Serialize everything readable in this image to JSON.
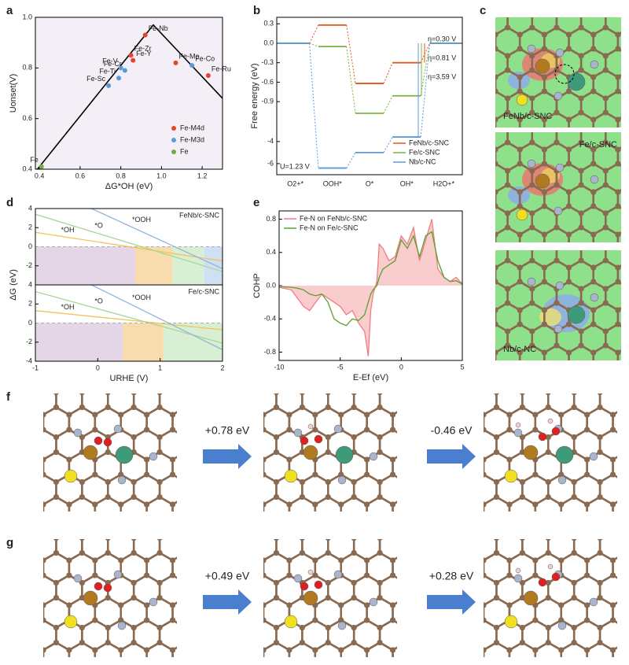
{
  "panels": [
    "a",
    "b",
    "c",
    "d",
    "e",
    "f",
    "g"
  ],
  "chart_data": [
    {
      "type": "scatter",
      "xlabel": "ΔG*OH (eV)",
      "ylabel": "Uonset(V)",
      "xlim": [
        0.38,
        1.3
      ],
      "ylim": [
        0.4,
        1.0
      ],
      "xticks": [
        0.4,
        0.6,
        0.8,
        {
          "value": 1,
          "label": "1.0"
        },
        1.2
      ],
      "yticks": [
        0.4,
        0.6,
        0.8,
        {
          "value": 1,
          "label": "1.0"
        }
      ],
      "lines": [
        {
          "color": "#000000",
          "x": [
            0.38,
            0.96,
            1.3
          ],
          "values": [
            0.39,
            0.97,
            0.68
          ]
        }
      ],
      "legend": "lower right",
      "series": [
        {
          "name": "Fe-M4d",
          "color": "#e8442a",
          "x": [
            0.92,
            0.85,
            0.86,
            1.07,
            1.23
          ],
          "values": [
            0.93,
            0.85,
            0.83,
            0.82,
            0.77
          ],
          "labels": [
            "Fe-Nb",
            "Fe-Zr",
            "Fe-Y",
            "Fe-Mo",
            "Fe-Ru"
          ]
        },
        {
          "name": "Fe-M3d",
          "color": "#5b9bd5",
          "x": [
            0.8,
            0.82,
            0.79,
            0.74,
            1.15
          ],
          "values": [
            0.8,
            0.79,
            0.76,
            0.73,
            0.81
          ],
          "labels": [
            "Fe-V",
            "Fe-Cr",
            "Fe-Ti",
            "Fe-Sc",
            "Fe-Co"
          ]
        },
        {
          "name": "Fe",
          "color": "#6ab04c",
          "x": [
            0.41
          ],
          "values": [
            0.41
          ],
          "labels": [
            "Fe"
          ]
        }
      ]
    },
    {
      "type": "step",
      "ylabel": "Free energy (eV)",
      "categories": [
        "O2+*",
        "OOH*",
        "O*",
        "OH*",
        "H2O+*"
      ],
      "ylim": [
        -7,
        0.4
      ],
      "ybreak": [
        -1.25,
        -3.3
      ],
      "yticks": [
        0.3,
        {
          "value": 0,
          "label": "0.0"
        },
        -0.3,
        -0.6,
        -0.9,
        -4,
        -6
      ],
      "legend": "lower right",
      "note": "U=1.23 V",
      "annotations": [
        "η=0.30 V",
        "η=0.81 V",
        "η=3.59 V"
      ],
      "series": [
        {
          "name": "FeNb/c-SNC",
          "color": "#e8541e",
          "values": [
            0,
            0.28,
            -0.62,
            -0.3,
            0
          ]
        },
        {
          "name": "Fe/c-SNC",
          "color": "#7cb342",
          "values": [
            0,
            -0.05,
            -1.08,
            -0.81,
            0
          ]
        },
        {
          "name": "Nb/c-NC",
          "color": "#5b9bd5",
          "values": [
            0,
            -6.4,
            -5.0,
            -3.59,
            0
          ]
        }
      ]
    },
    {
      "type": "line",
      "ylabel": "ΔG (eV)",
      "label": "FeNb/c-SNC",
      "xlim": [
        -1,
        2
      ],
      "ylim": [
        -4,
        4
      ],
      "yticks": [
        -2,
        0,
        2,
        4
      ],
      "zero_line": true,
      "regions": [
        {
          "x": [
            -1,
            0.6
          ],
          "color": "#e4d6e6"
        },
        {
          "x": [
            0.6,
            1.2
          ],
          "color": "#f8dcae"
        },
        {
          "x": [
            1.2,
            1.7
          ],
          "color": "#d9efd3"
        },
        {
          "x": [
            1.7,
            2
          ],
          "color": "#cfe0f2"
        }
      ],
      "series": [
        {
          "name": "*OH",
          "color": "#f2c45a",
          "x": [
            -1,
            2
          ],
          "values": [
            1.5,
            -1.5
          ]
        },
        {
          "name": "*O",
          "color": "#a8d69a",
          "x": [
            -1,
            2
          ],
          "values": [
            3.4,
            -2.6
          ]
        },
        {
          "name": "*OOH",
          "color": "#94b4dc",
          "x": [
            -0.1,
            2
          ],
          "values": [
            4,
            -2.3
          ]
        }
      ]
    },
    {
      "type": "line",
      "xlabel": "URHE (V)",
      "label": "Fe/c-SNC",
      "xlim": [
        -1,
        2
      ],
      "ylim": [
        -4,
        4
      ],
      "xticks": [
        -1,
        0,
        1,
        2
      ],
      "yticks": [
        -4,
        -2,
        0,
        2,
        4
      ],
      "zero_line": true,
      "regions": [
        {
          "x": [
            -1,
            0.4
          ],
          "color": "#e4d6e6"
        },
        {
          "x": [
            0.4,
            1.05
          ],
          "color": "#f8dcae"
        },
        {
          "x": [
            1.05,
            2
          ],
          "color": "#d9efd3"
        }
      ],
      "series": [
        {
          "name": "*OH",
          "color": "#f2c45a",
          "x": [
            -1,
            2
          ],
          "values": [
            1.3,
            -0.7
          ]
        },
        {
          "name": "*O",
          "color": "#a8d69a",
          "x": [
            -1,
            2
          ],
          "values": [
            3.3,
            -2.1
          ]
        },
        {
          "name": "*OOH",
          "color": "#94b4dc",
          "x": [
            -0.1,
            2
          ],
          "values": [
            4,
            -2.8
          ]
        }
      ]
    },
    {
      "type": "line",
      "xlabel": "E-Ef (eV)",
      "ylabel": "COHP",
      "xlim": [
        -10,
        5
      ],
      "ylim": [
        -0.9,
        0.9
      ],
      "xticks": [
        -10,
        -5,
        0,
        5
      ],
      "yticks": [
        -0.8,
        -0.4,
        {
          "value": 0,
          "label": "0.0"
        },
        0.4,
        0.8
      ],
      "legend": "upper left",
      "x": [
        -10,
        -9,
        -8.5,
        -8,
        -7.5,
        -7,
        -6.5,
        -6,
        -5.5,
        -5,
        -4.5,
        -4,
        -3.5,
        -3,
        -2.7,
        -2.5,
        -2.3,
        -2,
        -1.8,
        -1.5,
        -1,
        -0.5,
        0,
        0.5,
        1,
        1.5,
        2,
        2.5,
        3,
        3.5,
        4,
        4.5,
        5
      ],
      "series": [
        {
          "name": "Fe-N on FeNb/c-SNC",
          "color": "#f07c84",
          "fill": "#f8c4c4",
          "values": [
            -0.02,
            -0.05,
            -0.15,
            -0.25,
            -0.3,
            -0.2,
            -0.1,
            -0.15,
            -0.2,
            -0.25,
            -0.35,
            -0.3,
            -0.45,
            -0.55,
            -0.85,
            -0.3,
            -0.1,
            0.05,
            0.5,
            0.45,
            0.3,
            0.35,
            0.6,
            0.5,
            0.7,
            0.3,
            0.55,
            0.8,
            0.2,
            0.1,
            0.05,
            0.1,
            0.02
          ]
        },
        {
          "name": "Fe-N on Fe/c-SNC",
          "color": "#5aa02c",
          "values": [
            -0.01,
            -0.02,
            -0.03,
            -0.05,
            -0.1,
            -0.12,
            -0.1,
            -0.2,
            -0.4,
            -0.45,
            -0.48,
            -0.4,
            -0.42,
            -0.35,
            -0.2,
            -0.1,
            -0.05,
            0,
            0.1,
            0.2,
            0.25,
            0.3,
            0.55,
            0.45,
            0.6,
            0.35,
            0.6,
            0.65,
            0.3,
            0.1,
            0.05,
            0.06,
            0.02
          ]
        }
      ]
    }
  ],
  "panel_c": {
    "labels": [
      "FeNb/c-SNC",
      "Fe/c-SNC",
      "Nb/c-NC"
    ]
  },
  "panel_f": {
    "steps": [
      "+0.78 eV",
      "-0.46 eV"
    ]
  },
  "panel_g": {
    "steps": [
      "+0.49 eV",
      "+0.28 eV"
    ]
  }
}
